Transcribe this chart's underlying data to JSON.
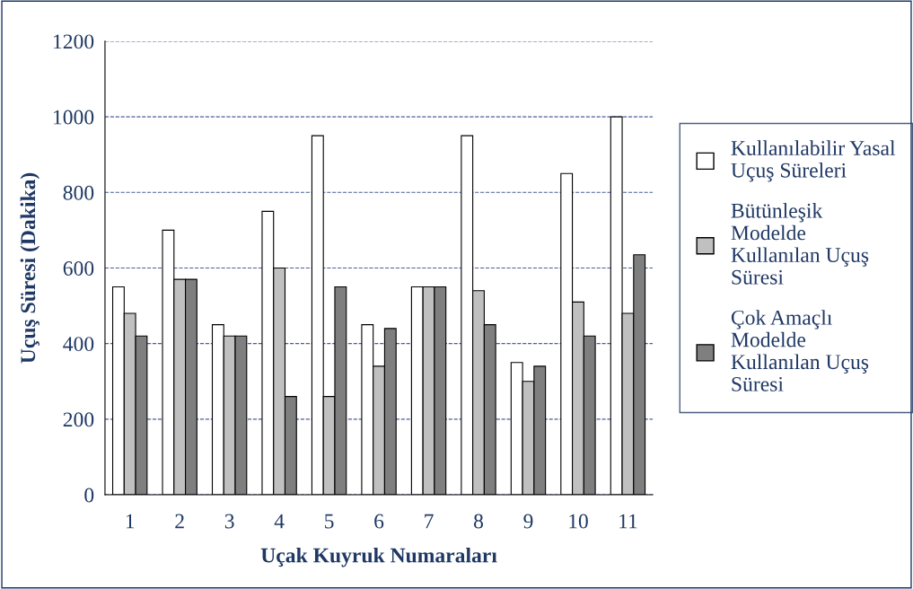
{
  "chart_data": {
    "type": "bar",
    "xlabel": "Uçak Kuyruk Numaraları",
    "ylabel": "Uçuş Süresi (Dakika)",
    "categories": [
      "1",
      "2",
      "3",
      "4",
      "5",
      "6",
      "7",
      "8",
      "9",
      "10",
      "11"
    ],
    "series": [
      {
        "name": "Kullanılabilir Yasal\nUçuş Süreleri",
        "color": "#ffffff",
        "values": [
          550,
          700,
          450,
          750,
          950,
          450,
          550,
          950,
          350,
          850,
          1000
        ]
      },
      {
        "name": "Bütünleşik\nModelde\nKullanılan Uçuş\nSüresi",
        "color": "#c0c0c0",
        "values": [
          480,
          570,
          420,
          600,
          260,
          340,
          550,
          540,
          300,
          510,
          480
        ]
      },
      {
        "name": "Çok Amaçlı\nModelde\nKullanılan Uçuş\nSüresi",
        "color": "#7f7f7f",
        "values": [
          420,
          570,
          420,
          260,
          550,
          440,
          550,
          450,
          340,
          420,
          635
        ]
      }
    ],
    "ylim": [
      0,
      1200
    ],
    "yticks": [
      0,
      200,
      400,
      600,
      800,
      1000,
      1200
    ],
    "grid": "y",
    "legend": "right"
  }
}
